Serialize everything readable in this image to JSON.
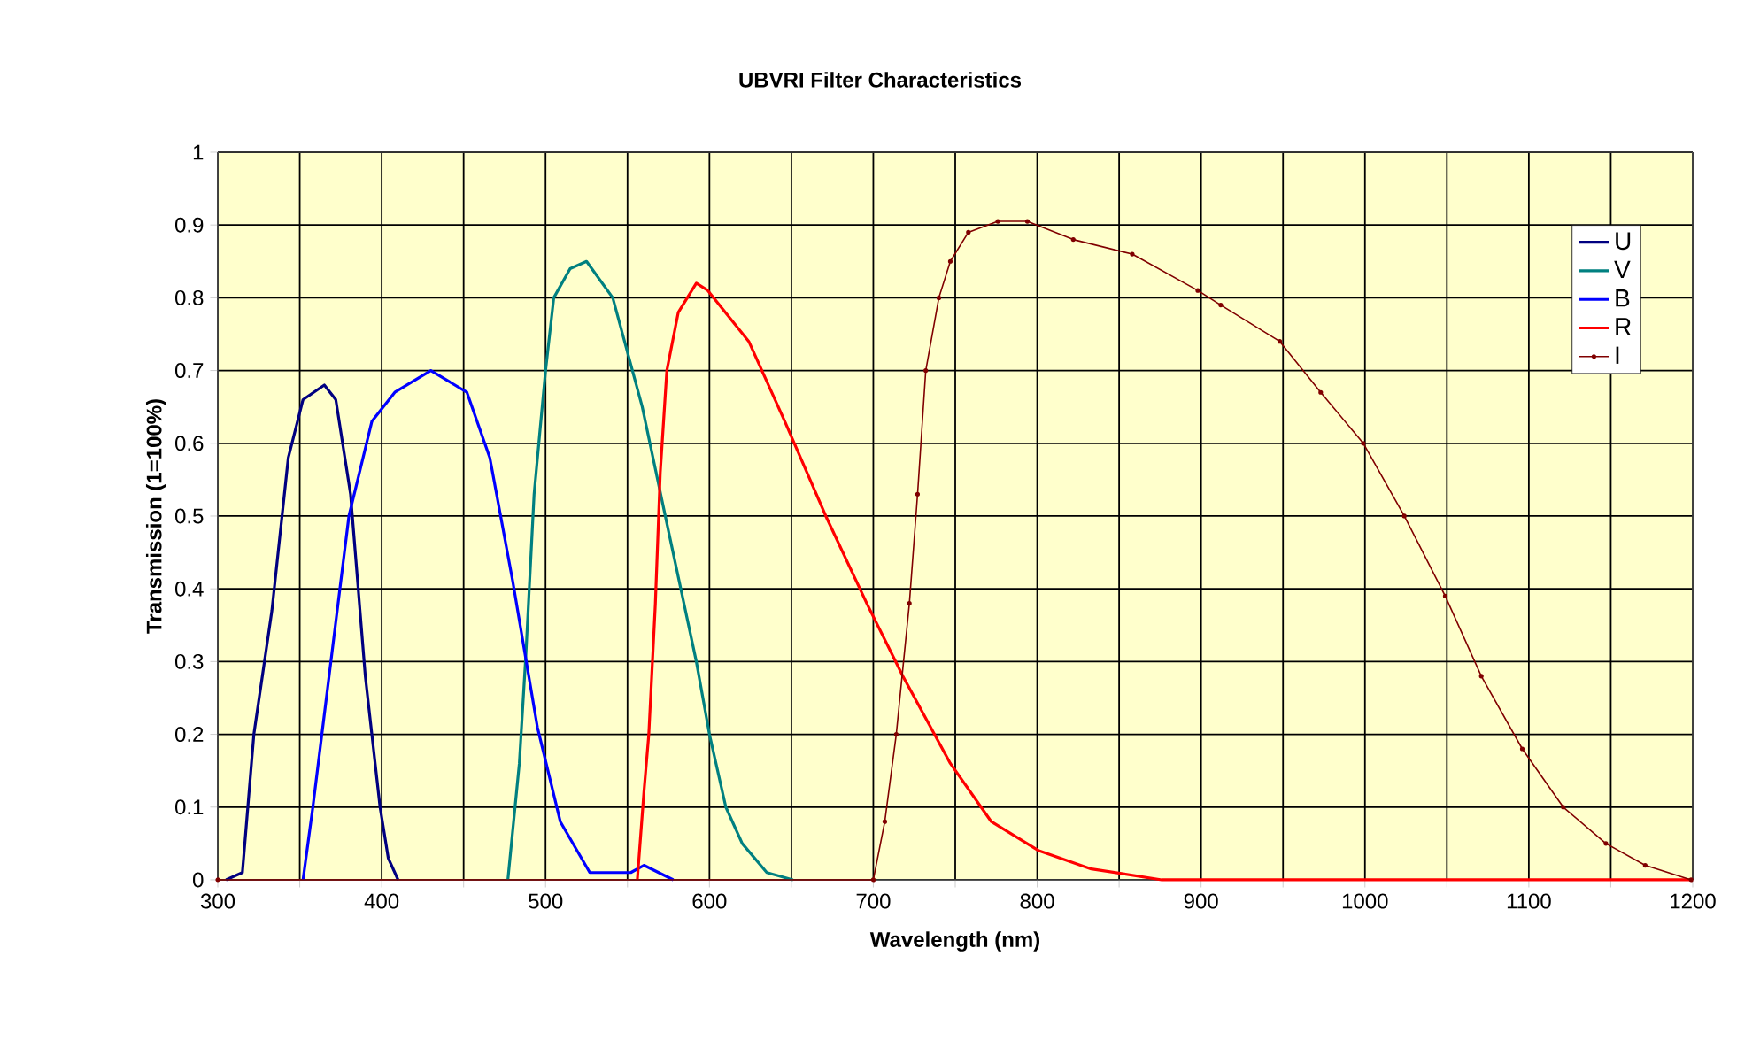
{
  "chart_data": {
    "type": "line",
    "title": "UBVRI Filter Characteristics",
    "xlabel": "Wavelength (nm)",
    "ylabel": "Transmission (1=100%)",
    "xlim": [
      300,
      1200
    ],
    "ylim": [
      0,
      1
    ],
    "xticks": [
      300,
      {
        "value": 350,
        "label": null
      },
      400,
      {
        "value": 450,
        "label": null
      },
      500,
      {
        "value": 550,
        "label": null
      },
      600,
      {
        "value": 650,
        "label": null
      },
      700,
      {
        "value": 750,
        "label": null
      },
      800,
      {
        "value": 850,
        "label": null
      },
      900,
      {
        "value": 950,
        "label": null
      },
      1000,
      {
        "value": 1050,
        "label": null
      },
      1100,
      {
        "value": 1150,
        "label": null
      },
      1200
    ],
    "yticks": [
      0,
      0.1,
      0.2,
      0.3,
      0.4,
      0.5,
      0.6,
      0.7,
      0.8,
      0.9,
      1
    ],
    "grid": true,
    "legend": "top right",
    "line_style": "solid",
    "series": [
      {
        "name": "U",
        "color": "#000080",
        "x": [
          305,
          315,
          322,
          333,
          343,
          352,
          365,
          372,
          381,
          390,
          399,
          404,
          410
        ],
        "values": [
          0,
          0.01,
          0.2,
          0.37,
          0.58,
          0.66,
          0.68,
          0.66,
          0.53,
          0.28,
          0.1,
          0.03,
          0
        ]
      },
      {
        "name": "V",
        "color": "#008080",
        "x": [
          477,
          484,
          488,
          493,
          500,
          505,
          515,
          525,
          541,
          559,
          574,
          592,
          600,
          610,
          620,
          635,
          651
        ],
        "values": [
          0,
          0.16,
          0.31,
          0.53,
          0.7,
          0.8,
          0.84,
          0.85,
          0.8,
          0.65,
          0.49,
          0.3,
          0.2,
          0.1,
          0.05,
          0.01,
          0
        ]
      },
      {
        "name": "B",
        "color": "#0000ff",
        "x": [
          352,
          358,
          369,
          380,
          394,
          408,
          430,
          452,
          466,
          480,
          495,
          509,
          527,
          552,
          560,
          578
        ],
        "values": [
          0,
          0.1,
          0.3,
          0.5,
          0.63,
          0.67,
          0.7,
          0.67,
          0.58,
          0.41,
          0.21,
          0.08,
          0.01,
          0.01,
          0.02,
          0
        ]
      },
      {
        "name": "R",
        "color": "#ff0000",
        "x": [
          556,
          560,
          563,
          567,
          570,
          574,
          581,
          592,
          599,
          624,
          646,
          671,
          696,
          718,
          747,
          772,
          801,
          833,
          876,
          1200
        ],
        "values": [
          0,
          0.12,
          0.2,
          0.38,
          0.56,
          0.7,
          0.78,
          0.82,
          0.81,
          0.74,
          0.63,
          0.5,
          0.38,
          0.28,
          0.16,
          0.08,
          0.04,
          0.015,
          0,
          0
        ]
      },
      {
        "name": "I",
        "color": "#800000",
        "marker": "circle",
        "x": [
          300,
          700,
          707,
          714,
          722,
          727,
          732,
          740,
          747,
          758,
          776,
          794,
          822,
          858,
          898,
          912,
          948,
          973,
          999,
          1024,
          1049,
          1071,
          1096,
          1121,
          1147,
          1171,
          1199
        ],
        "values": [
          0,
          0,
          0.08,
          0.2,
          0.38,
          0.53,
          0.7,
          0.8,
          0.85,
          0.89,
          0.905,
          0.905,
          0.88,
          0.86,
          0.81,
          0.79,
          0.74,
          0.67,
          0.6,
          0.5,
          0.39,
          0.28,
          0.18,
          0.1,
          0.05,
          0.02,
          0
        ]
      }
    ]
  }
}
